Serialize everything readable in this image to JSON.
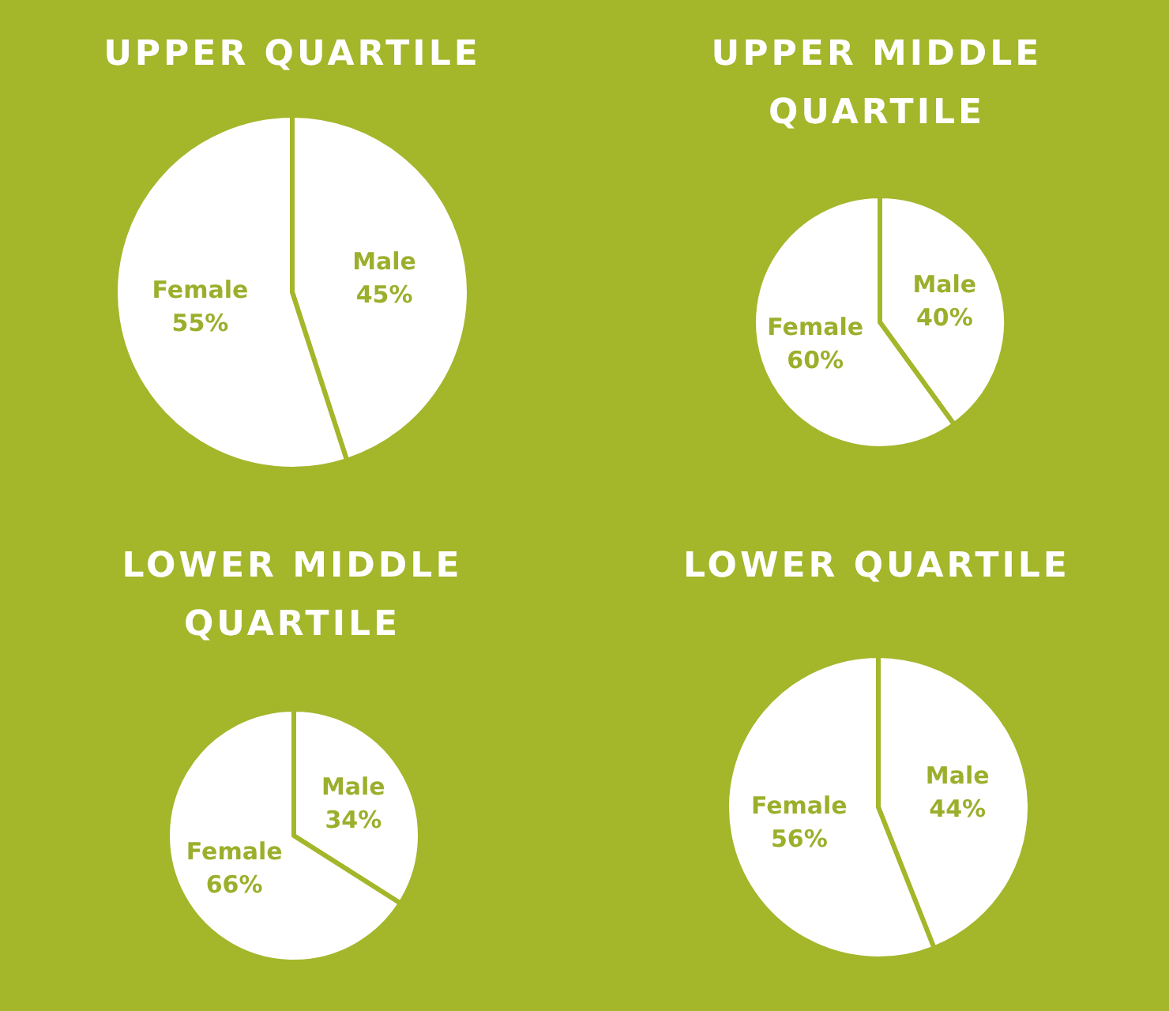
{
  "chart_data": [
    {
      "type": "pie",
      "title": "UPPER QUARTILE",
      "categories": [
        "Male",
        "Female"
      ],
      "values": [
        45,
        55
      ],
      "colors": [
        "#ffffff",
        "#ffffff"
      ],
      "value_labels": [
        "45%",
        "55%"
      ]
    },
    {
      "type": "pie",
      "title": "UPPER MIDDLE QUARTILE",
      "categories": [
        "Male",
        "Female"
      ],
      "values": [
        40,
        60
      ],
      "colors": [
        "#ffffff",
        "#ffffff"
      ],
      "value_labels": [
        "40%",
        "60%"
      ]
    },
    {
      "type": "pie",
      "title": "LOWER MIDDLE QUARTILE",
      "categories": [
        "Male",
        "Female"
      ],
      "values": [
        34,
        66
      ],
      "colors": [
        "#ffffff",
        "#ffffff"
      ],
      "value_labels": [
        "34%",
        "66%"
      ]
    },
    {
      "type": "pie",
      "title": "LOWER QUARTILE",
      "categories": [
        "Male",
        "Female"
      ],
      "values": [
        44,
        56
      ],
      "colors": [
        "#ffffff",
        "#ffffff"
      ],
      "value_labels": [
        "44%",
        "56%"
      ]
    }
  ]
}
